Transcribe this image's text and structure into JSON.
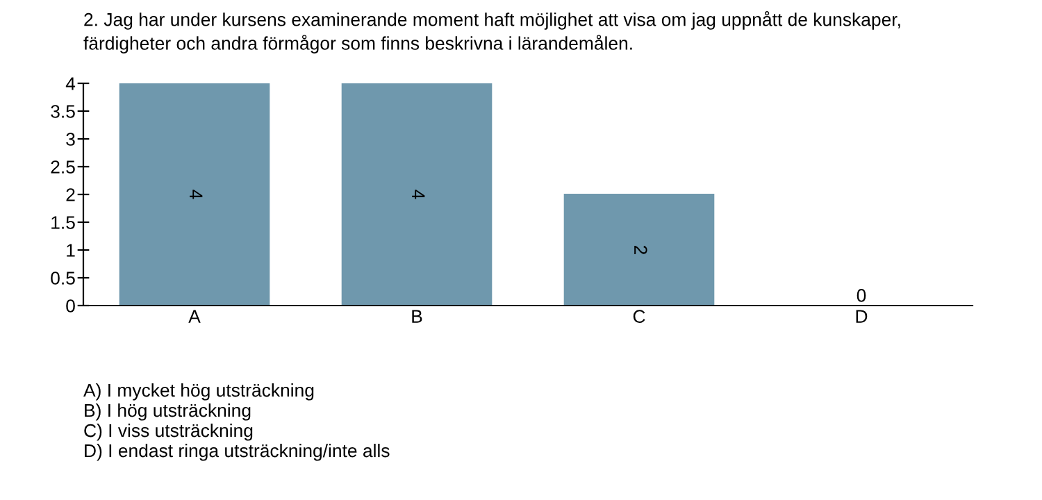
{
  "chart_data": {
    "type": "bar",
    "title": "2. Jag har under kursens examinerande moment haft möjlighet att visa om jag uppnått de kunskaper,\nfärdigheter och andra förmågor som finns beskrivna i lärandemålen.",
    "categories": [
      "A",
      "B",
      "C",
      "D"
    ],
    "values": [
      4,
      4,
      2,
      0
    ],
    "color": "#6f98ad",
    "ylim": [
      0,
      4
    ],
    "yticks": [
      0,
      0.5,
      1,
      1.5,
      2,
      2.5,
      3,
      3.5,
      4
    ],
    "data_labels": true,
    "grid": false,
    "annotations": [
      "A) I mycket hög utsträckning",
      "B) I hög utsträckning",
      "C) I viss utsträckning",
      "D) I endast ringa utsträckning/inte alls"
    ]
  }
}
